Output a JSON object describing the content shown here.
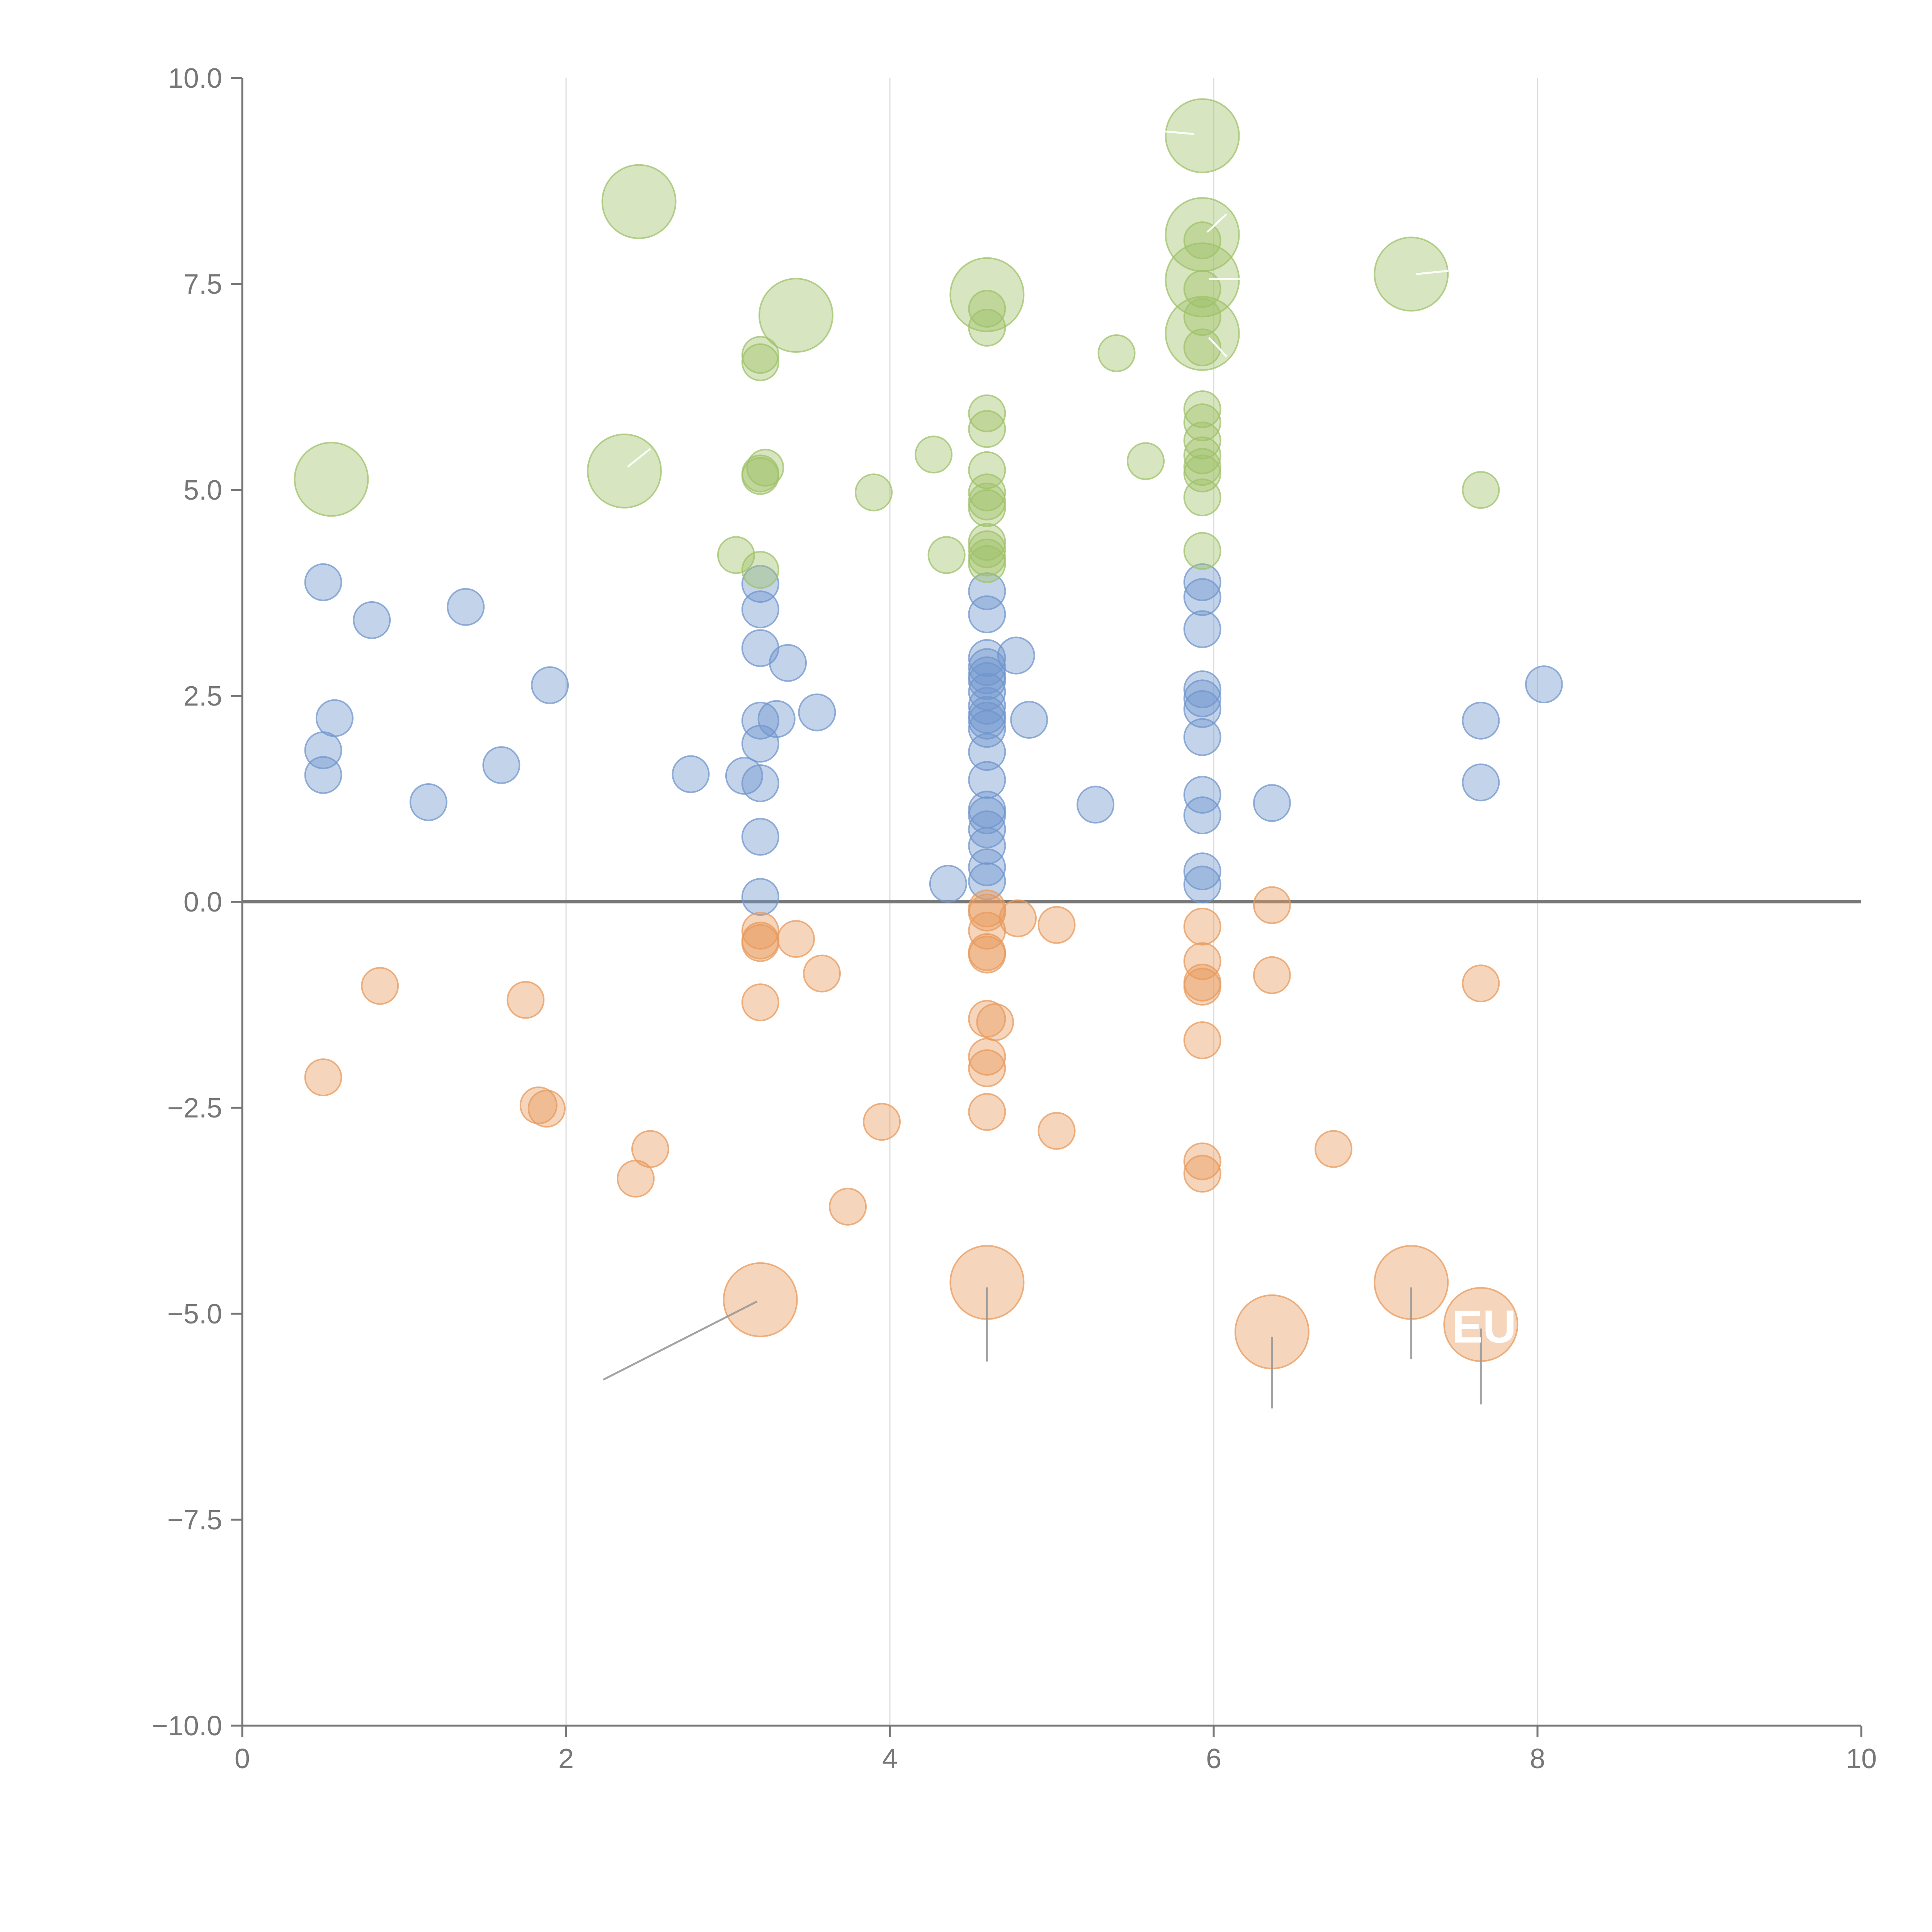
{
  "chart_data": {
    "type": "scatter",
    "title": "",
    "xlabel": "",
    "ylabel": "",
    "xlim": [
      0,
      10
    ],
    "ylim": [
      -10,
      10
    ],
    "x_ticks": [
      0,
      2,
      4,
      6,
      8,
      10
    ],
    "x_tick_labels": [
      "0",
      "2",
      "4",
      "6",
      "8",
      "10"
    ],
    "y_ticks": [
      -10,
      -7.5,
      -5,
      -2.5,
      0,
      2.5,
      5,
      7.5,
      10
    ],
    "y_tick_labels": [
      "−10.0",
      "−7.5",
      "−5.0",
      "−2.5",
      "0.0",
      "2.5",
      "5.0",
      "7.5",
      "10.0"
    ],
    "grid": "vertical",
    "zero_line": true,
    "colors": {
      "blue": "#7096cc",
      "orange": "#e89a5c",
      "green": "#9fc26a",
      "axis": "#777777",
      "grid": "#dddddd",
      "zero": "#777777",
      "leader": "#999999"
    },
    "series": [
      {
        "name": "blue",
        "color": "#7096cc",
        "points": [
          {
            "x": 0.5,
            "y": 3.88,
            "r": 1
          },
          {
            "x": 0.8,
            "y": 3.42,
            "r": 1
          },
          {
            "x": 1.38,
            "y": 3.58,
            "r": 1
          },
          {
            "x": 1.9,
            "y": 2.63,
            "r": 1
          },
          {
            "x": 0.57,
            "y": 2.23,
            "r": 1
          },
          {
            "x": 0.5,
            "y": 1.84,
            "r": 1
          },
          {
            "x": 0.5,
            "y": 1.54,
            "r": 1
          },
          {
            "x": 1.15,
            "y": 1.21,
            "r": 1
          },
          {
            "x": 1.6,
            "y": 1.66,
            "r": 1
          },
          {
            "x": 2.77,
            "y": 1.55,
            "r": 1
          },
          {
            "x": 3.1,
            "y": 1.53,
            "r": 1
          },
          {
            "x": 3.2,
            "y": 1.44,
            "r": 1
          },
          {
            "x": 3.2,
            "y": 0.79,
            "r": 1
          },
          {
            "x": 3.2,
            "y": 0.06,
            "r": 1
          },
          {
            "x": 3.2,
            "y": 3.86,
            "r": 1
          },
          {
            "x": 3.2,
            "y": 3.55,
            "r": 1
          },
          {
            "x": 3.2,
            "y": 3.08,
            "r": 1
          },
          {
            "x": 3.37,
            "y": 2.9,
            "r": 1
          },
          {
            "x": 3.2,
            "y": 2.2,
            "r": 1
          },
          {
            "x": 3.3,
            "y": 2.22,
            "r": 1
          },
          {
            "x": 3.2,
            "y": 1.92,
            "r": 1
          },
          {
            "x": 3.55,
            "y": 2.3,
            "r": 1
          },
          {
            "x": 4.36,
            "y": 0.22,
            "r": 1
          },
          {
            "x": 4.6,
            "y": 3.77,
            "r": 1
          },
          {
            "x": 4.6,
            "y": 3.49,
            "r": 1
          },
          {
            "x": 4.6,
            "y": 2.96,
            "r": 1
          },
          {
            "x": 4.6,
            "y": 2.85,
            "r": 1
          },
          {
            "x": 4.6,
            "y": 2.75,
            "r": 1
          },
          {
            "x": 4.6,
            "y": 2.68,
            "r": 1
          },
          {
            "x": 4.6,
            "y": 2.55,
            "r": 1
          },
          {
            "x": 4.6,
            "y": 2.38,
            "r": 1
          },
          {
            "x": 4.6,
            "y": 2.27,
            "r": 1
          },
          {
            "x": 4.6,
            "y": 2.2,
            "r": 1
          },
          {
            "x": 4.6,
            "y": 2.1,
            "r": 1
          },
          {
            "x": 4.78,
            "y": 2.99,
            "r": 1
          },
          {
            "x": 4.86,
            "y": 2.21,
            "r": 1
          },
          {
            "x": 4.6,
            "y": 1.82,
            "r": 1
          },
          {
            "x": 4.6,
            "y": 1.48,
            "r": 1
          },
          {
            "x": 4.6,
            "y": 1.12,
            "r": 1
          },
          {
            "x": 4.6,
            "y": 1.05,
            "r": 1
          },
          {
            "x": 4.6,
            "y": 0.88,
            "r": 1
          },
          {
            "x": 4.6,
            "y": 0.68,
            "r": 1
          },
          {
            "x": 4.6,
            "y": 0.42,
            "r": 1
          },
          {
            "x": 4.6,
            "y": 0.25,
            "r": 1
          },
          {
            "x": 5.27,
            "y": 1.18,
            "r": 1
          },
          {
            "x": 5.93,
            "y": 3.88,
            "r": 1
          },
          {
            "x": 5.93,
            "y": 3.7,
            "r": 1
          },
          {
            "x": 5.93,
            "y": 3.31,
            "r": 1
          },
          {
            "x": 5.93,
            "y": 2.58,
            "r": 1
          },
          {
            "x": 5.93,
            "y": 2.47,
            "r": 1
          },
          {
            "x": 5.93,
            "y": 2.34,
            "r": 1
          },
          {
            "x": 5.93,
            "y": 2.0,
            "r": 1
          },
          {
            "x": 5.93,
            "y": 1.3,
            "r": 1
          },
          {
            "x": 5.93,
            "y": 1.05,
            "r": 1
          },
          {
            "x": 5.93,
            "y": 0.37,
            "r": 1
          },
          {
            "x": 5.93,
            "y": 0.21,
            "r": 1
          },
          {
            "x": 6.36,
            "y": 1.2,
            "r": 1
          },
          {
            "x": 7.65,
            "y": 2.2,
            "r": 1
          },
          {
            "x": 7.65,
            "y": 1.45,
            "r": 1
          },
          {
            "x": 8.04,
            "y": 2.64,
            "r": 1
          }
        ]
      },
      {
        "name": "orange",
        "color": "#e89a5c",
        "points": [
          {
            "x": 0.85,
            "y": -1.02,
            "r": 1
          },
          {
            "x": 1.75,
            "y": -1.19,
            "r": 1
          },
          {
            "x": 0.5,
            "y": -2.13,
            "r": 1
          },
          {
            "x": 1.83,
            "y": -2.47,
            "r": 1
          },
          {
            "x": 1.88,
            "y": -2.51,
            "r": 1
          },
          {
            "x": 2.52,
            "y": -3.0,
            "r": 1
          },
          {
            "x": 2.43,
            "y": -3.36,
            "r": 1
          },
          {
            "x": 3.2,
            "y": -0.35,
            "r": 1
          },
          {
            "x": 3.2,
            "y": -0.47,
            "r": 1
          },
          {
            "x": 3.2,
            "y": -0.5,
            "r": 1
          },
          {
            "x": 3.42,
            "y": -0.45,
            "r": 1
          },
          {
            "x": 3.58,
            "y": -0.87,
            "r": 1
          },
          {
            "x": 3.2,
            "y": -1.22,
            "r": 1
          },
          {
            "x": 3.95,
            "y": -2.67,
            "r": 1
          },
          {
            "x": 3.74,
            "y": -3.7,
            "r": 1
          },
          {
            "x": 4.6,
            "y": -0.08,
            "r": 1
          },
          {
            "x": 4.6,
            "y": -0.13,
            "r": 1
          },
          {
            "x": 4.6,
            "y": -0.35,
            "r": 1
          },
          {
            "x": 4.6,
            "y": -0.61,
            "r": 1
          },
          {
            "x": 4.6,
            "y": -0.64,
            "r": 1
          },
          {
            "x": 4.79,
            "y": -0.2,
            "r": 1
          },
          {
            "x": 5.03,
            "y": -0.28,
            "r": 1
          },
          {
            "x": 4.6,
            "y": -1.42,
            "r": 1
          },
          {
            "x": 4.65,
            "y": -1.46,
            "r": 1
          },
          {
            "x": 4.6,
            "y": -1.88,
            "r": 1
          },
          {
            "x": 4.6,
            "y": -2.02,
            "r": 1
          },
          {
            "x": 4.6,
            "y": -2.55,
            "r": 1
          },
          {
            "x": 5.03,
            "y": -2.78,
            "r": 1
          },
          {
            "x": 5.93,
            "y": -0.3,
            "r": 1
          },
          {
            "x": 5.93,
            "y": -0.72,
            "r": 1
          },
          {
            "x": 5.93,
            "y": -0.98,
            "r": 1
          },
          {
            "x": 5.93,
            "y": -1.03,
            "r": 1
          },
          {
            "x": 5.93,
            "y": -1.68,
            "r": 1
          },
          {
            "x": 5.93,
            "y": -3.15,
            "r": 1
          },
          {
            "x": 5.93,
            "y": -3.3,
            "r": 1
          },
          {
            "x": 6.36,
            "y": -0.04,
            "r": 1
          },
          {
            "x": 6.36,
            "y": -0.89,
            "r": 1
          },
          {
            "x": 6.74,
            "y": -3.0,
            "r": 1
          },
          {
            "x": 7.65,
            "y": -0.99,
            "r": 1
          },
          {
            "x": 3.2,
            "y": -4.83,
            "r": 2
          },
          {
            "x": 4.6,
            "y": -4.62,
            "r": 2
          },
          {
            "x": 6.36,
            "y": -5.22,
            "r": 2
          },
          {
            "x": 7.22,
            "y": -4.62,
            "r": 2
          },
          {
            "x": 7.65,
            "y": -5.13,
            "r": 2
          }
        ]
      },
      {
        "name": "green",
        "color": "#9fc26a",
        "points": [
          {
            "x": 2.45,
            "y": 8.5,
            "r": 2
          },
          {
            "x": 3.42,
            "y": 7.12,
            "r": 2
          },
          {
            "x": 0.55,
            "y": 5.13,
            "r": 2
          },
          {
            "x": 2.36,
            "y": 5.23,
            "r": 2
          },
          {
            "x": 3.2,
            "y": 6.64,
            "r": 1
          },
          {
            "x": 3.2,
            "y": 6.55,
            "r": 1
          },
          {
            "x": 3.23,
            "y": 5.27,
            "r": 1
          },
          {
            "x": 3.2,
            "y": 5.2,
            "r": 1
          },
          {
            "x": 3.2,
            "y": 5.17,
            "r": 1
          },
          {
            "x": 3.05,
            "y": 4.21,
            "r": 1
          },
          {
            "x": 3.2,
            "y": 4.03,
            "r": 1
          },
          {
            "x": 3.9,
            "y": 4.97,
            "r": 1
          },
          {
            "x": 4.27,
            "y": 5.43,
            "r": 1
          },
          {
            "x": 4.35,
            "y": 4.21,
            "r": 1
          },
          {
            "x": 4.6,
            "y": 7.37,
            "r": 2
          },
          {
            "x": 4.6,
            "y": 7.2,
            "r": 1
          },
          {
            "x": 4.6,
            "y": 6.97,
            "r": 1
          },
          {
            "x": 4.6,
            "y": 5.93,
            "r": 1
          },
          {
            "x": 4.6,
            "y": 5.74,
            "r": 1
          },
          {
            "x": 4.6,
            "y": 5.24,
            "r": 1
          },
          {
            "x": 4.6,
            "y": 4.97,
            "r": 1
          },
          {
            "x": 4.6,
            "y": 4.86,
            "r": 1
          },
          {
            "x": 4.6,
            "y": 4.78,
            "r": 1
          },
          {
            "x": 4.6,
            "y": 4.37,
            "r": 1
          },
          {
            "x": 4.6,
            "y": 4.28,
            "r": 1
          },
          {
            "x": 4.6,
            "y": 4.18,
            "r": 1
          },
          {
            "x": 4.6,
            "y": 4.1,
            "r": 1
          },
          {
            "x": 5.4,
            "y": 6.66,
            "r": 1
          },
          {
            "x": 5.58,
            "y": 5.35,
            "r": 1
          },
          {
            "x": 5.93,
            "y": 9.3,
            "r": 2
          },
          {
            "x": 5.93,
            "y": 8.1,
            "r": 2
          },
          {
            "x": 5.93,
            "y": 7.55,
            "r": 2
          },
          {
            "x": 5.93,
            "y": 6.9,
            "r": 2
          },
          {
            "x": 5.93,
            "y": 8.03,
            "r": 1
          },
          {
            "x": 5.93,
            "y": 7.44,
            "r": 1
          },
          {
            "x": 5.93,
            "y": 7.1,
            "r": 1
          },
          {
            "x": 5.93,
            "y": 6.73,
            "r": 1
          },
          {
            "x": 5.93,
            "y": 5.98,
            "r": 1
          },
          {
            "x": 5.93,
            "y": 5.82,
            "r": 1
          },
          {
            "x": 5.93,
            "y": 5.6,
            "r": 1
          },
          {
            "x": 5.93,
            "y": 5.42,
            "r": 1
          },
          {
            "x": 5.93,
            "y": 5.28,
            "r": 1
          },
          {
            "x": 5.93,
            "y": 5.2,
            "r": 1
          },
          {
            "x": 5.93,
            "y": 4.91,
            "r": 1
          },
          {
            "x": 5.93,
            "y": 4.26,
            "r": 1
          },
          {
            "x": 7.22,
            "y": 7.62,
            "r": 2
          },
          {
            "x": 7.65,
            "y": 5.0,
            "r": 1
          }
        ]
      }
    ],
    "leader_lines": [
      {
        "x1": 3.18,
        "y1": -4.85,
        "x2": 2.23,
        "y2": -5.8,
        "color": "#999999"
      },
      {
        "x1": 4.6,
        "y1": -4.68,
        "x2": 4.6,
        "y2": -5.58,
        "color": "#999999"
      },
      {
        "x1": 6.36,
        "y1": -5.28,
        "x2": 6.36,
        "y2": -6.15,
        "color": "#999999"
      },
      {
        "x1": 7.22,
        "y1": -4.68,
        "x2": 7.22,
        "y2": -5.55,
        "color": "#999999"
      },
      {
        "x1": 7.65,
        "y1": -5.18,
        "x2": 7.65,
        "y2": -6.1,
        "color": "#999999"
      },
      {
        "x1": 2.38,
        "y1": 5.28,
        "x2": 2.52,
        "y2": 5.5,
        "color": "#ffffff"
      },
      {
        "x1": 5.6,
        "y1": 9.37,
        "x2": 5.88,
        "y2": 9.32,
        "color": "#ffffff"
      },
      {
        "x1": 5.96,
        "y1": 8.13,
        "x2": 6.08,
        "y2": 8.35,
        "color": "#ffffff"
      },
      {
        "x1": 5.97,
        "y1": 7.56,
        "x2": 6.18,
        "y2": 7.56,
        "color": "#ffffff"
      },
      {
        "x1": 5.97,
        "y1": 6.85,
        "x2": 6.08,
        "y2": 6.62,
        "color": "#ffffff"
      },
      {
        "x1": 7.25,
        "y1": 7.62,
        "x2": 7.45,
        "y2": 7.66,
        "color": "#ffffff"
      }
    ],
    "annotations": [
      {
        "text": "EU",
        "x": 7.67,
        "y": -5.35,
        "color": "#ffffff"
      }
    ]
  }
}
